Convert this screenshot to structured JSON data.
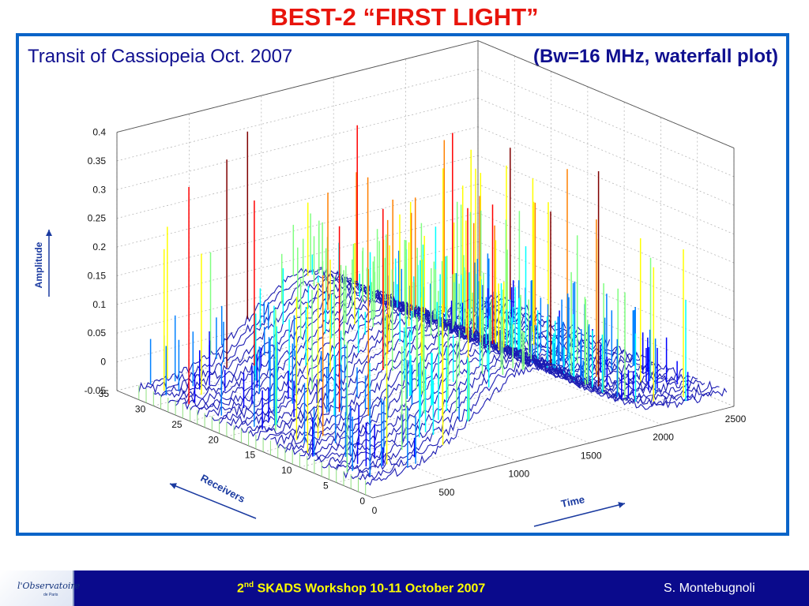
{
  "slide": {
    "title": "BEST-2   “FIRST LIGHT”",
    "subtitle_left": "Transit of Cassiopeia  Oct. 2007",
    "subtitle_right": "(Bw=16 MHz,  waterfall plot)"
  },
  "footer": {
    "logo_text": "l'Observatoire",
    "logo_sub": "de Paris",
    "workshop_ordinal": "2",
    "workshop_sup": "nd",
    "workshop_text": " SKADS Workshop  10-11 October 2007",
    "author": "S. Montebugnoli"
  },
  "chart_data": {
    "type": "waterfall",
    "annotations": {
      "amplitude": "Amplitude",
      "receivers": "Receivers",
      "time": "Time"
    },
    "z_ticks": [
      "-0.05",
      "0",
      "0.05",
      "0.1",
      "0.15",
      "0.2",
      "0.25",
      "0.3",
      "0.35",
      "0.4"
    ],
    "receiver_ticks": [
      "0",
      "5",
      "10",
      "15",
      "20",
      "25",
      "30",
      "35"
    ],
    "time_ticks": [
      "0",
      "500",
      "1000",
      "1500",
      "2000",
      "2500"
    ],
    "zlim": [
      -0.05,
      0.4
    ],
    "receiver_range": [
      0,
      35
    ],
    "time_range": [
      0,
      2500
    ],
    "grid": true,
    "receivers": 32,
    "transit": {
      "peak_time": 1150,
      "peak_amplitude": 0.1,
      "width": 520,
      "baseline": -0.03
    },
    "spike_max_amplitude": 0.37,
    "colormap": [
      "#00008f",
      "#0000ff",
      "#0080ff",
      "#00ffff",
      "#80ff80",
      "#ffff00",
      "#ff8000",
      "#ff0000",
      "#800000"
    ]
  }
}
